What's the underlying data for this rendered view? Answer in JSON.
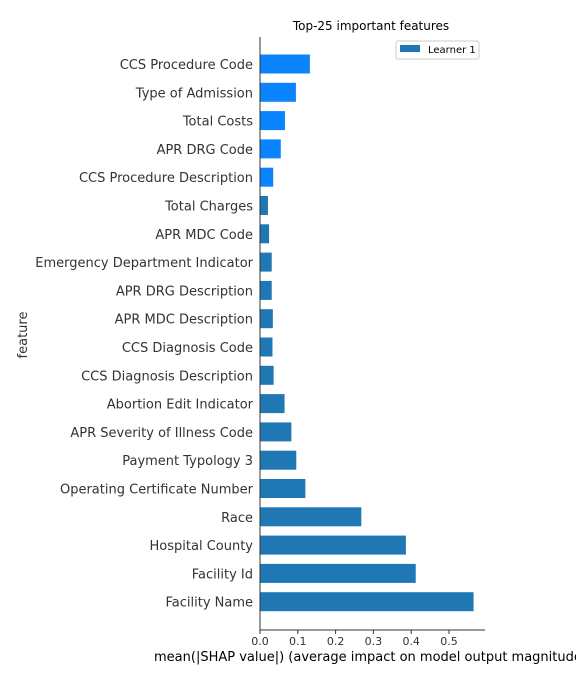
{
  "chart_data": {
    "type": "bar",
    "orientation": "horizontal",
    "title": "Top-25 important features",
    "xlabel": "mean(|SHAP value|) (average impact on model output magnitude)",
    "ylabel": "feature",
    "xlim": [
      0,
      0.59
    ],
    "xticks": [
      "0.0",
      "0.1",
      "0.2",
      "0.3",
      "0.4",
      "0.5"
    ],
    "legend": {
      "position": "top-right",
      "label": "Learner 1"
    },
    "colors": {
      "bar": "#1f77b4",
      "highlight": "#0a84ff"
    },
    "categories": [
      "CCS Procedure Code",
      "Type of Admission",
      "Total Costs",
      "APR DRG Code",
      "CCS Procedure Description",
      "Total Charges",
      "APR MDC Code",
      "Emergency Department Indicator",
      "APR DRG Description",
      "APR MDC Description",
      "CCS Diagnosis Code",
      "CCS Diagnosis Description",
      "Abortion Edit Indicator",
      "APR Severity of Illness Code",
      "Payment Typology 3",
      "Operating Certificate Number",
      "Race",
      "Hospital County",
      "Facility Id",
      "Facility Name"
    ],
    "values": [
      0.132,
      0.095,
      0.066,
      0.055,
      0.035,
      0.021,
      0.024,
      0.031,
      0.031,
      0.034,
      0.033,
      0.036,
      0.065,
      0.083,
      0.096,
      0.12,
      0.268,
      0.386,
      0.412,
      0.565
    ],
    "highlighted": [
      true,
      true,
      true,
      true,
      true,
      false,
      false,
      false,
      false,
      false,
      false,
      false,
      false,
      false,
      false,
      false,
      false,
      false,
      false,
      false
    ]
  }
}
